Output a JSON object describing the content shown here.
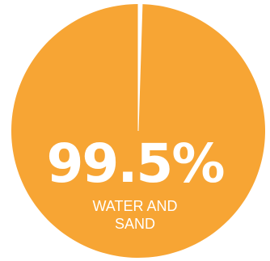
{
  "colors": {
    "main_slice": "#F7A534",
    "minor_slice": "#ffffff",
    "text": "#ffffff",
    "background": "#ffffff"
  },
  "annotation": {
    "value": "99.5%",
    "label": "WATER AND\nSAND"
  },
  "chart_data": {
    "type": "pie",
    "slices": [
      {
        "label": "WATER AND SAND",
        "value": 99.5
      },
      {
        "label": "",
        "value": 0.5
      }
    ],
    "legend": "none"
  }
}
